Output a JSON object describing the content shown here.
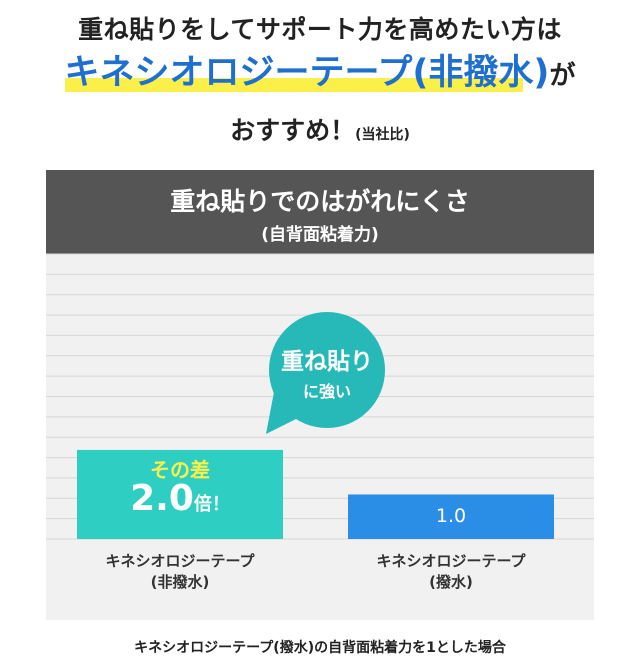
{
  "headline": {
    "line1": "重ね貼りをしてサポート力を高めたい方は",
    "line2": "キネシオロジーテープ(非撥水)",
    "line2_suffix": "が",
    "line3": "おすすめ！",
    "line3_small": "(当社比)"
  },
  "chart_data": {
    "type": "bar",
    "title": "重ね貼りでのはがれにくさ",
    "subtitle": "(自背面粘着力)",
    "categories": [
      "キネシオロジーテープ\n(非撥水)",
      "キネシオロジーテープ\n(撥水)"
    ],
    "values": [
      2.0,
      1.0
    ],
    "ylim": [
      0,
      6.4
    ],
    "grid": true,
    "colors": [
      "#2ecfc2",
      "#2b8ee6"
    ],
    "data_labels": [
      "2.0",
      "1.0"
    ],
    "annotations": {
      "bar1_top": "その差",
      "bar1_unit": "倍！",
      "bubble_line1": "重ね貼り",
      "bubble_line2": "に強い"
    }
  },
  "colors": {
    "accent_blue": "#1f6fd1",
    "highlight_yellow": "#fbf04a",
    "bubble_teal": "#27b8b8",
    "header_gray": "#555555"
  },
  "footnote": "キネシオロジーテープ(撥水)の自背面粘着力を1とした場合"
}
